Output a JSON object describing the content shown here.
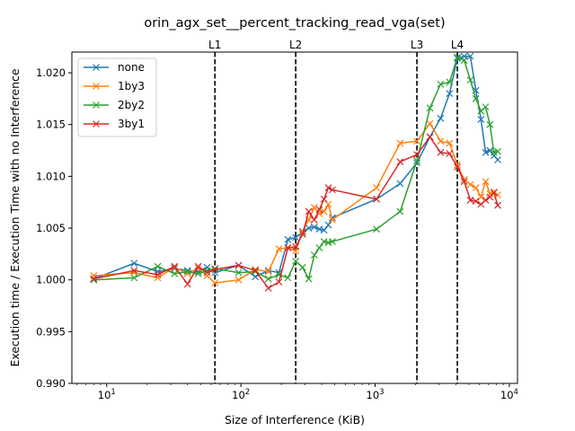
{
  "chart_data": {
    "type": "line",
    "title": "orin_agx_set__percent_tracking_read_vga(set)",
    "xlabel": "Size of Interference (KiB)",
    "ylabel": "Execution time / Execution Time with no Interference",
    "xscale": "log",
    "xlim": [
      5.5,
      11500
    ],
    "ylim": [
      0.99,
      1.022
    ],
    "x_ticks": [
      {
        "value": 10,
        "label": "10^1"
      },
      {
        "value": 100,
        "label": "10^2"
      },
      {
        "value": 1000,
        "label": "10^3"
      },
      {
        "value": 10000,
        "label": "10^4"
      }
    ],
    "y_ticks": [
      {
        "value": 0.99,
        "label": "0.990"
      },
      {
        "value": 0.995,
        "label": "0.995"
      },
      {
        "value": 1.0,
        "label": "1.000"
      },
      {
        "value": 1.005,
        "label": "1.005"
      },
      {
        "value": 1.01,
        "label": "1.010"
      },
      {
        "value": 1.015,
        "label": "1.015"
      },
      {
        "value": 1.02,
        "label": "1.020"
      }
    ],
    "vlines": [
      {
        "label": "L1",
        "x": 64
      },
      {
        "label": "L2",
        "x": 256
      },
      {
        "label": "L3",
        "x": 2048
      },
      {
        "label": "L4",
        "x": 4096
      }
    ],
    "legend_position": "top-left",
    "grid": false,
    "series": [
      {
        "name": "none",
        "color": "#1f77b4",
        "x": [
          8,
          16,
          24,
          32,
          40,
          48,
          56,
          64,
          96,
          128,
          160,
          192,
          224,
          256,
          288,
          320,
          352,
          384,
          416,
          448,
          480,
          1024,
          1536,
          2048,
          2560,
          3072,
          3584,
          4096,
          4608,
          5120,
          5632,
          6144,
          6656,
          7168,
          7680,
          8192
        ],
        "y": [
          1.0001,
          1.0016,
          1.0008,
          1.0011,
          1.0009,
          1.0008,
          1.0012,
          1.0007,
          1.0014,
          1.0003,
          1.0009,
          1.0007,
          1.0039,
          1.0041,
          1.0046,
          1.005,
          1.0051,
          1.0049,
          1.0048,
          1.0053,
          1.006,
          1.0078,
          1.0093,
          1.0113,
          1.0138,
          1.0156,
          1.018,
          1.0214,
          1.0216,
          1.0216,
          1.0183,
          1.0155,
          1.0123,
          1.0125,
          1.012,
          1.0116
        ]
      },
      {
        "name": "1by3",
        "color": "#ff7f0e",
        "x": [
          8,
          16,
          24,
          32,
          40,
          48,
          56,
          64,
          96,
          128,
          160,
          192,
          224,
          256,
          288,
          320,
          352,
          384,
          416,
          448,
          480,
          1024,
          1536,
          2048,
          2560,
          3072,
          3584,
          4096,
          4608,
          5120,
          5632,
          6144,
          6656,
          7168,
          7680,
          8192
        ],
        "y": [
          1.0004,
          1.0007,
          1.0002,
          1.0012,
          1.0006,
          1.0011,
          1.0004,
          0.9997,
          1.0,
          1.001,
          1.0008,
          1.003,
          1.0031,
          1.0028,
          1.0047,
          1.0058,
          1.007,
          1.0064,
          1.0066,
          1.0073,
          1.0058,
          1.0089,
          1.0132,
          1.0134,
          1.0151,
          1.0134,
          1.0132,
          1.0111,
          1.0097,
          1.0092,
          1.0089,
          1.008,
          1.0095,
          1.0083,
          1.0085,
          1.0082
        ]
      },
      {
        "name": "2by2",
        "color": "#2ca02c",
        "x": [
          8,
          16,
          24,
          32,
          40,
          48,
          56,
          64,
          96,
          128,
          160,
          192,
          224,
          256,
          288,
          320,
          352,
          384,
          416,
          448,
          480,
          1024,
          1536,
          2048,
          2560,
          3072,
          3584,
          4096,
          4608,
          5120,
          5632,
          6144,
          6656,
          7168,
          7680,
          8192
        ],
        "y": [
          1.0,
          1.0002,
          1.0013,
          1.0006,
          1.0008,
          1.0006,
          1.0009,
          1.0011,
          1.0007,
          1.0008,
          1.0001,
          1.0005,
          1.0002,
          1.0018,
          1.0012,
          1.0001,
          1.0024,
          1.0031,
          1.0037,
          1.0036,
          1.0037,
          1.0049,
          1.0066,
          1.0115,
          1.0166,
          1.0189,
          1.0191,
          1.0215,
          1.0212,
          1.0193,
          1.0175,
          1.0163,
          1.0167,
          1.015,
          1.0123,
          1.0124
        ]
      },
      {
        "name": "3by1",
        "color": "#d62728",
        "x": [
          8,
          16,
          24,
          32,
          40,
          48,
          56,
          64,
          96,
          128,
          160,
          192,
          224,
          256,
          288,
          320,
          352,
          384,
          416,
          448,
          480,
          1024,
          1536,
          2048,
          2560,
          3072,
          3584,
          4096,
          4608,
          5120,
          5632,
          6144,
          6656,
          7168,
          7680,
          8192
        ],
        "y": [
          1.0001,
          1.0009,
          1.0005,
          1.0013,
          0.9996,
          1.0013,
          1.0007,
          1.001,
          1.0014,
          1.0009,
          0.9992,
          0.9998,
          1.0031,
          1.0032,
          1.0044,
          1.0066,
          1.0058,
          1.0068,
          1.0078,
          1.0089,
          1.0087,
          1.0078,
          1.0114,
          1.0121,
          1.0138,
          1.0123,
          1.0122,
          1.0109,
          1.0095,
          1.0077,
          1.0076,
          1.0073,
          1.0077,
          1.008,
          1.0084,
          1.0072
        ]
      }
    ]
  }
}
